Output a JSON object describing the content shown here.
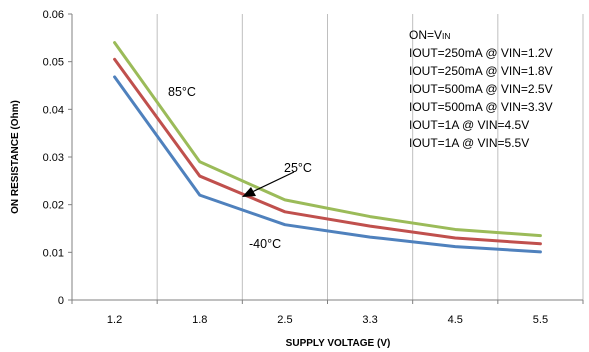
{
  "chart_data": {
    "type": "line",
    "xlabel": "SUPPLY VOLTAGE (V)",
    "ylabel": "ON RESISTANCE (Ohm)",
    "x": [
      1.2,
      1.8,
      2.5,
      3.3,
      4.5,
      5.5
    ],
    "x_ticks": [
      "1.2",
      "1.8",
      "2.5",
      "3.3",
      "4.5",
      "5.5"
    ],
    "ylim": [
      0,
      0.06
    ],
    "y_ticks": [
      "0",
      "0.01",
      "0.02",
      "0.03",
      "0.04",
      "0.05",
      "0.06"
    ],
    "grid": "vertical",
    "series": [
      {
        "name": "85°C",
        "color": "#9bbb59",
        "values": [
          0.054,
          0.029,
          0.021,
          0.0175,
          0.0148,
          0.0135
        ]
      },
      {
        "name": "25°C",
        "color": "#c0504d",
        "values": [
          0.0505,
          0.026,
          0.0185,
          0.0155,
          0.013,
          0.0118
        ]
      },
      {
        "name": "-40°C",
        "color": "#4f81bd",
        "values": [
          0.0468,
          0.022,
          0.0158,
          0.0132,
          0.0112,
          0.0101
        ]
      }
    ],
    "annotations": [
      "ON=V",
      "IN",
      "IOUT=250mA @ VIN=1.2V",
      "IOUT=250mA @ VIN=1.8V",
      "IOUT=500mA @ VIN=2.5V",
      "IOUT=500mA @ VIN=3.3V",
      "IOUT=1A @ VIN=4.5V",
      "IOUT=1A @ VIN=5.5V"
    ]
  }
}
